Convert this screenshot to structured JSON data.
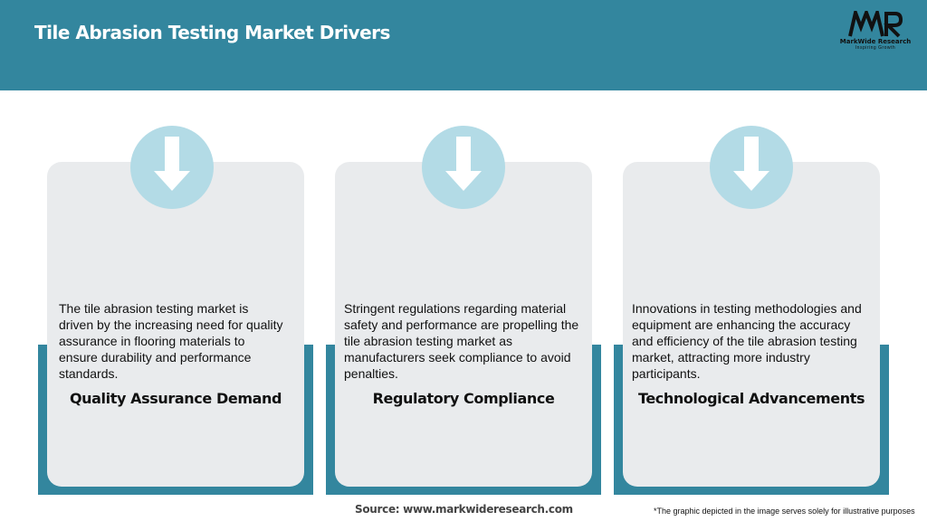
{
  "header": {
    "title": "Tile Abrasion Testing Market Drivers",
    "logo": {
      "mark": "MWR",
      "name": "MarkWide Research",
      "tagline": "Inspiring Growth"
    }
  },
  "cards": [
    {
      "icon": "arrow-down-icon",
      "heading": "Quality Assurance Demand",
      "body": "The tile abrasion testing market is driven by the increasing need for quality assurance in flooring materials to ensure durability and performance standards."
    },
    {
      "icon": "arrow-down-icon",
      "heading": "Regulatory Compliance",
      "body": "Stringent regulations regarding material safety and performance are propelling the tile abrasion testing market as manufacturers seek compliance to avoid penalties."
    },
    {
      "icon": "arrow-down-icon",
      "heading": "Technological Advancements",
      "body": "Innovations in testing methodologies and equipment are enhancing the accuracy and efficiency of the tile abrasion testing market, attracting more industry participants."
    }
  ],
  "footer": {
    "source": "Source: www.markwideresearch.com",
    "note": "*The graphic depicted in the image serves solely for illustrative purposes"
  },
  "colors": {
    "header": "#33869e",
    "card": "#e9ebed",
    "circle": "#b3dbe6"
  }
}
